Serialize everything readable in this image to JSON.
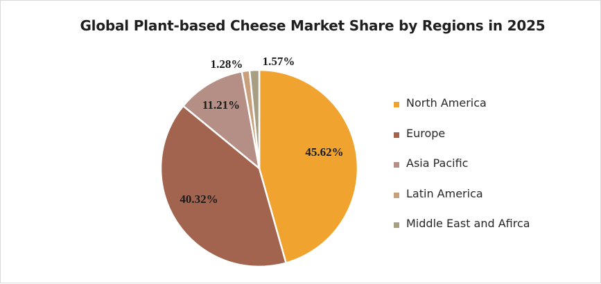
{
  "chart_data": {
    "type": "pie",
    "title": "Global Plant-based Cheese Market Share by Regions in 2025",
    "labels": [
      "North America",
      "Europe",
      "Asia Pacific",
      "Latin America",
      "Middle East and Afirca"
    ],
    "values": [
      45.62,
      40.32,
      11.21,
      1.28,
      1.57
    ],
    "data_labels": [
      "45.62%",
      "40.32%",
      "11.21%",
      "1.28%",
      "1.57%"
    ],
    "colors": [
      "#F0A32F",
      "#A2644E",
      "#B58F85",
      "#C9A07C",
      "#A89E82"
    ],
    "legend_position": "right"
  }
}
